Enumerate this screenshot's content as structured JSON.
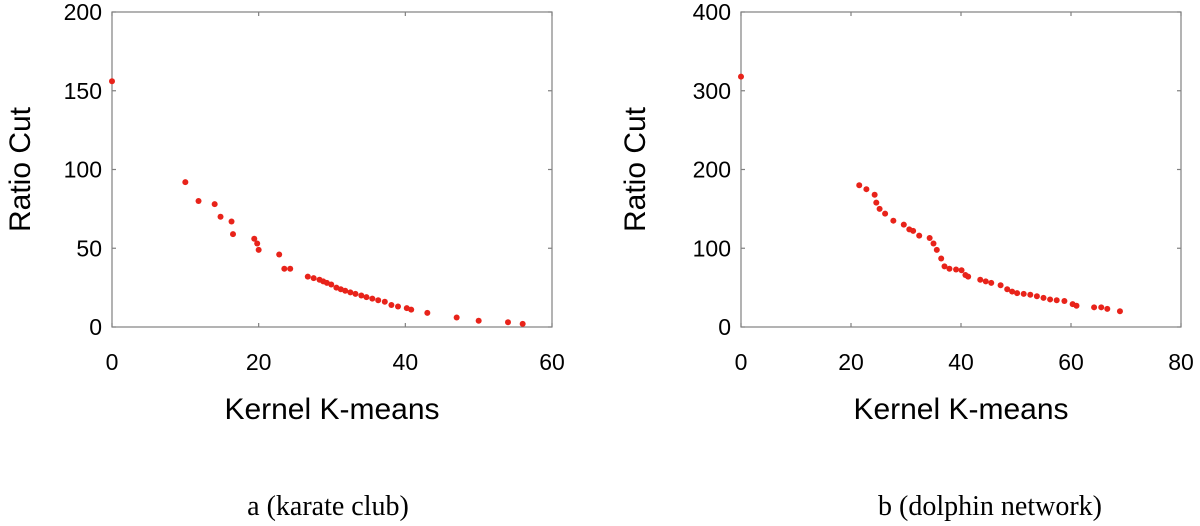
{
  "chart_data": [
    {
      "type": "scatter",
      "title": "",
      "caption": "a (karate club)",
      "xlabel": "Kernel K-means",
      "ylabel": "Ratio Cut",
      "xlim": [
        0,
        60
      ],
      "ylim": [
        0,
        200
      ],
      "xticks": [
        0,
        20,
        40,
        60
      ],
      "yticks": [
        0,
        50,
        100,
        150,
        200
      ],
      "grid": false,
      "marker_color": "#e8231a",
      "x": [
        0,
        10,
        11.8,
        14,
        14.8,
        16.3,
        16.5,
        19.4,
        19.8,
        20,
        22.8,
        23.5,
        24.3,
        26.7,
        27.5,
        28.3,
        28.8,
        29.3,
        29.9,
        30.6,
        31.2,
        31.8,
        32.5,
        33.2,
        34,
        34.7,
        35.5,
        36.3,
        37.2,
        38.1,
        39,
        40.2,
        40.8,
        43,
        47,
        50,
        54,
        56
      ],
      "y": [
        156,
        92,
        80,
        78,
        70,
        67,
        59,
        56,
        53,
        49,
        46,
        37,
        37,
        32,
        31,
        30,
        29,
        28,
        27,
        25,
        24,
        23,
        22,
        21,
        20,
        19,
        18,
        17,
        16,
        14,
        13,
        12,
        11,
        9,
        6,
        4,
        3,
        2
      ]
    },
    {
      "type": "scatter",
      "title": "",
      "caption": "b (dolphin network)",
      "xlabel": "Kernel K-means",
      "ylabel": "Ratio Cut",
      "xlim": [
        0,
        80
      ],
      "ylim": [
        0,
        400
      ],
      "xticks": [
        0,
        20,
        40,
        60,
        80
      ],
      "yticks": [
        0,
        100,
        200,
        300,
        400
      ],
      "grid": false,
      "marker_color": "#e8231a",
      "x": [
        0,
        21.5,
        22.8,
        24.3,
        24.6,
        25.2,
        26.2,
        27.7,
        29.6,
        30.6,
        31.3,
        32.4,
        34.3,
        35,
        35.6,
        36.4,
        37,
        37.9,
        39.1,
        40.1,
        40.8,
        41.3,
        43.5,
        44.5,
        45.5,
        47.2,
        48.4,
        49.3,
        50.2,
        51.4,
        52.6,
        53.8,
        55,
        56.2,
        57.4,
        58.8,
        60.3,
        61,
        64.2,
        65.5,
        66.6,
        68.9
      ],
      "y": [
        318,
        180,
        175,
        168,
        158,
        150,
        144,
        135,
        130,
        124,
        122,
        116,
        113,
        106,
        98,
        87,
        77,
        74,
        73,
        72,
        66,
        64,
        60,
        58,
        56,
        53,
        48,
        45,
        43,
        42,
        41,
        39,
        37,
        35,
        34,
        33,
        29,
        27,
        25,
        25,
        23,
        20
      ]
    }
  ]
}
